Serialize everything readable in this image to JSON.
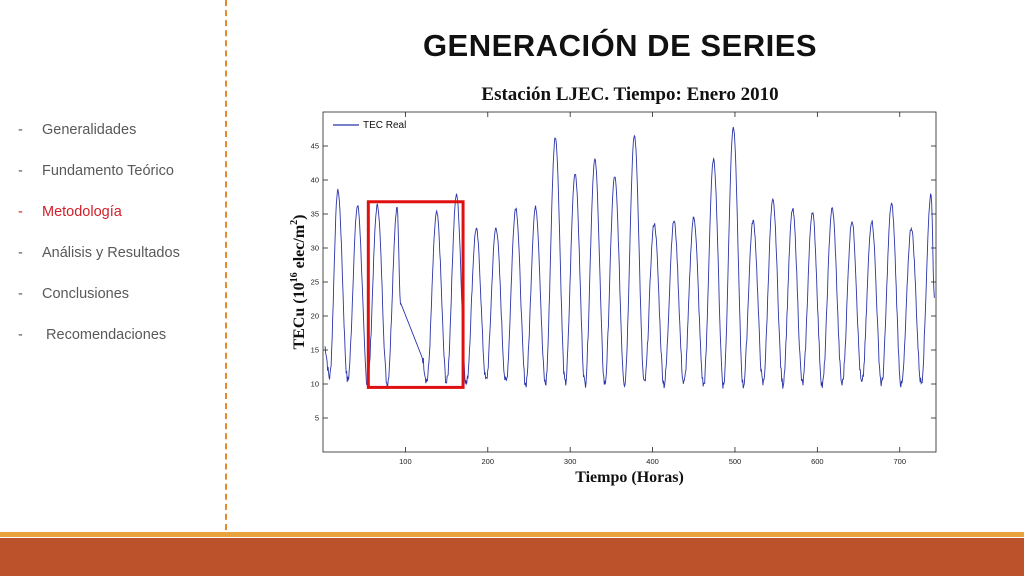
{
  "slide": {
    "title": "GENERACIÓN DE SERIES"
  },
  "sidebar": {
    "dash": "-",
    "items": [
      {
        "label": "Generalidades",
        "active": false
      },
      {
        "label": "Fundamento Teórico",
        "active": false
      },
      {
        "label": "Metodología",
        "active": true
      },
      {
        "label": "Análisis y Resultados",
        "active": false
      },
      {
        "label": "Conclusiones",
        "active": false
      },
      {
        "label": " Recomendaciones",
        "active": false
      }
    ]
  },
  "colors": {
    "accent_orange": "#e38b2c",
    "active_red": "#d0202a",
    "series_blue": "#2b35a8",
    "highlight_red": "#e01010",
    "footer_bar": "#bb522c"
  },
  "chart_data": {
    "type": "line",
    "title": "Estación LJEC. Tiempo: Enero 2010",
    "xlabel": "Tiempo (Horas)",
    "ylabel": "TECu (10^16 elec/m^2)",
    "ylabel_parts": {
      "base": "TECu (10",
      "exp1": "16",
      "mid": " elec/m",
      "exp2": "2",
      "end": ")"
    },
    "xlim": [
      0,
      744
    ],
    "ylim": [
      0,
      50
    ],
    "xticks": [
      100,
      200,
      300,
      400,
      500,
      600,
      700
    ],
    "yticks": [
      5,
      10,
      15,
      20,
      25,
      30,
      35,
      40,
      45
    ],
    "legend": {
      "position": "top-left",
      "entries": [
        "TEC Real"
      ]
    },
    "series": [
      {
        "name": "TEC Real",
        "peaks": [
          {
            "x": 2,
            "y": 15.5
          },
          {
            "x": 18,
            "y": 38.5
          },
          {
            "x": 42,
            "y": 36.2
          },
          {
            "x": 66,
            "y": 36.3
          },
          {
            "x": 90,
            "y": 36.0
          },
          {
            "x": 138,
            "y": 35.2
          },
          {
            "x": 162,
            "y": 37.8
          },
          {
            "x": 186,
            "y": 32.8
          },
          {
            "x": 210,
            "y": 33.0
          },
          {
            "x": 234,
            "y": 35.9
          },
          {
            "x": 258,
            "y": 36.0
          },
          {
            "x": 282,
            "y": 46.3
          },
          {
            "x": 306,
            "y": 41.0
          },
          {
            "x": 330,
            "y": 43.0
          },
          {
            "x": 354,
            "y": 40.5
          },
          {
            "x": 378,
            "y": 46.5
          },
          {
            "x": 402,
            "y": 33.6
          },
          {
            "x": 426,
            "y": 34.0
          },
          {
            "x": 450,
            "y": 34.5
          },
          {
            "x": 474,
            "y": 43.0
          },
          {
            "x": 498,
            "y": 47.7
          },
          {
            "x": 522,
            "y": 34.0
          },
          {
            "x": 546,
            "y": 37.0
          },
          {
            "x": 570,
            "y": 35.7
          },
          {
            "x": 594,
            "y": 35.3
          },
          {
            "x": 618,
            "y": 35.8
          },
          {
            "x": 642,
            "y": 34.0
          },
          {
            "x": 666,
            "y": 34.0
          },
          {
            "x": 690,
            "y": 36.5
          },
          {
            "x": 714,
            "y": 33.0
          },
          {
            "x": 738,
            "y": 38.0
          }
        ],
        "troughs": [
          {
            "x": 8,
            "y": 11.0
          },
          {
            "x": 30,
            "y": 10.5
          },
          {
            "x": 54,
            "y": 10.0
          },
          {
            "x": 78,
            "y": 10.0
          },
          {
            "x": 126,
            "y": 10.5
          },
          {
            "x": 150,
            "y": 10.2
          },
          {
            "x": 174,
            "y": 10.0
          },
          {
            "x": 198,
            "y": 10.5
          },
          {
            "x": 222,
            "y": 10.2
          },
          {
            "x": 246,
            "y": 10.0
          },
          {
            "x": 270,
            "y": 10.0
          },
          {
            "x": 294,
            "y": 10.0
          },
          {
            "x": 318,
            "y": 10.0
          },
          {
            "x": 342,
            "y": 10.0
          },
          {
            "x": 366,
            "y": 10.2
          },
          {
            "x": 390,
            "y": 10.0
          },
          {
            "x": 414,
            "y": 10.0
          },
          {
            "x": 438,
            "y": 10.0
          },
          {
            "x": 462,
            "y": 9.8
          },
          {
            "x": 486,
            "y": 9.8
          },
          {
            "x": 510,
            "y": 9.8
          },
          {
            "x": 534,
            "y": 10.0
          },
          {
            "x": 558,
            "y": 10.0
          },
          {
            "x": 582,
            "y": 10.0
          },
          {
            "x": 606,
            "y": 9.8
          },
          {
            "x": 630,
            "y": 10.0
          },
          {
            "x": 654,
            "y": 10.0
          },
          {
            "x": 678,
            "y": 10.0
          },
          {
            "x": 702,
            "y": 9.7
          },
          {
            "x": 726,
            "y": 10.2
          }
        ],
        "gap_segment": [
          {
            "x": 94,
            "y": 22.0
          },
          {
            "x": 120,
            "y": 14.0
          }
        ],
        "end": {
          "x": 742,
          "y": 23.0
        }
      }
    ],
    "annotation": {
      "type": "highlight-rectangle",
      "x": [
        55,
        170
      ],
      "y": [
        9.5,
        36.8
      ]
    }
  }
}
